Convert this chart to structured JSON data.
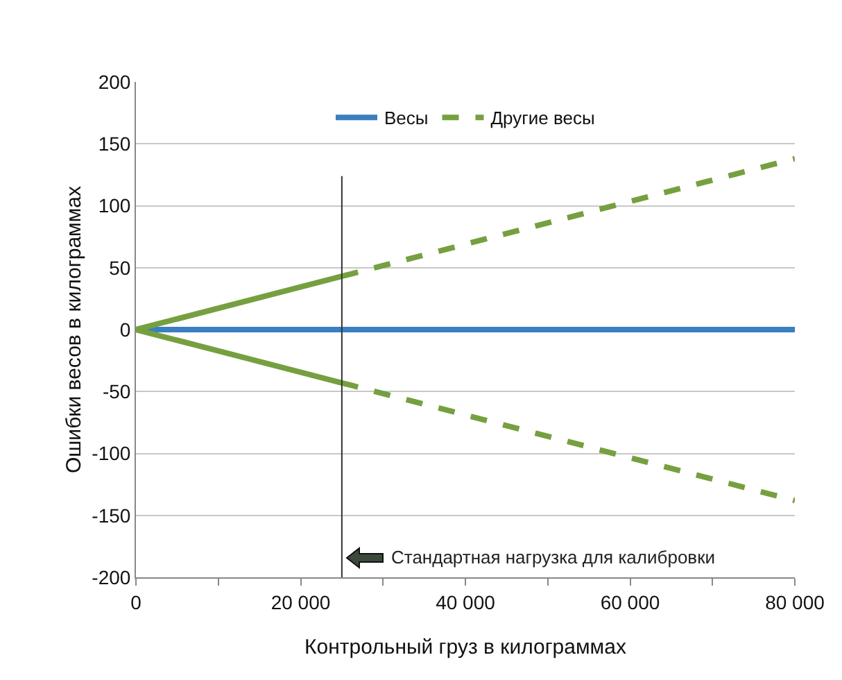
{
  "chart_data": {
    "type": "line",
    "xlabel": "Контрольный груз в килограммах",
    "ylabel": "Ошибки весов в килограммах",
    "xlim": [
      0,
      80000
    ],
    "xticks": [
      0,
      {
        "value": 20000,
        "label": "20 000"
      },
      {
        "value": 40000,
        "label": "40 000"
      },
      {
        "value": 60000,
        "label": "60 000"
      },
      {
        "value": 80000,
        "label": "80 000"
      }
    ],
    "ylim": [
      -200,
      200
    ],
    "yticks": [
      -200,
      -150,
      -100,
      -50,
      0,
      50,
      100,
      150,
      200
    ],
    "grid": "y",
    "legend": "top",
    "marker": "none",
    "series": [
      {
        "name": "Весы",
        "color": "#3a7fc1",
        "x": [
          0,
          80000
        ],
        "values": [
          0,
          0
        ],
        "line_style": "solid"
      },
      {
        "color": "#76a040",
        "x": [
          0,
          25000
        ],
        "values": [
          0,
          43
        ],
        "line_style": "solid"
      },
      {
        "name": "Другие весы",
        "color": "#76a040",
        "x": [
          25000,
          80000
        ],
        "values": [
          43,
          138
        ],
        "line_style": "dashed"
      },
      {
        "color": "#76a040",
        "x": [
          0,
          25000
        ],
        "values": [
          0,
          -43
        ],
        "line_style": "solid"
      },
      {
        "color": "#76a040",
        "x": [
          25000,
          80000
        ],
        "values": [
          -43,
          -138
        ],
        "line_style": "dashed"
      }
    ],
    "ref_lines": [
      {
        "axis": "x",
        "value": 25000,
        "label": "Стандартная нагрузка для калибровки",
        "color": "#333333",
        "line_style": "solid"
      }
    ]
  }
}
